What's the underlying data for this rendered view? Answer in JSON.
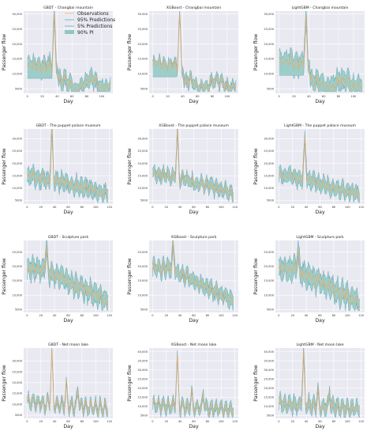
{
  "colors": {
    "panel_bg": "#e9e9f1",
    "grid": "#ffffff",
    "observations": "#f2a65a",
    "pi_fill": "#8fc8c1",
    "pi_edge": "#6aa9b5"
  },
  "legend": {
    "observations": "Observations",
    "p95": "95% Predictions",
    "p5": "5% Predictions",
    "pi": "90% PI"
  },
  "chart_data": [
    {
      "type": "area",
      "title": "GBDT - Changbai mountain",
      "xlabel": "Day",
      "ylabel": "Passenger flow",
      "xlim": [
        -5,
        115
      ],
      "ylim": [
        3500,
        31000
      ],
      "xticks": [
        0,
        20,
        40,
        60,
        80,
        100
      ],
      "yticks": [
        5000,
        10000,
        15000,
        20000,
        25000,
        30000
      ],
      "ytick_labels": [
        "5000",
        "10,000",
        "15,000",
        "20,000",
        "25,000",
        "30,000"
      ],
      "grid": true,
      "legend": "top-right",
      "shape": "A",
      "base": 13000,
      "peak": 29500,
      "peak_day": 36,
      "late_level": 6500,
      "spread": 3500
    },
    {
      "type": "area",
      "title": "XGBoost - Changbai mountain",
      "xlabel": "Day",
      "ylabel": "Passenger flow",
      "xlim": [
        -5,
        115
      ],
      "ylim": [
        3500,
        31000
      ],
      "xticks": [
        0,
        20,
        40,
        60,
        80,
        100
      ],
      "yticks": [
        5000,
        10000,
        15000,
        20000,
        25000,
        30000
      ],
      "ytick_labels": [
        "5000",
        "10,000",
        "15,000",
        "20,000",
        "25,000",
        "30,000"
      ],
      "grid": true,
      "legend": "none",
      "shape": "A",
      "base": 13500,
      "peak": 29500,
      "peak_day": 36,
      "late_level": 6500,
      "spread": 2500
    },
    {
      "type": "area",
      "title": "LightGBM - Changbai mountain",
      "xlabel": "Day",
      "ylabel": "Passenger flow",
      "xlim": [
        -5,
        115
      ],
      "ylim": [
        3500,
        31000
      ],
      "xticks": [
        0,
        20,
        40,
        60,
        80,
        100
      ],
      "yticks": [
        5000,
        10000,
        15000,
        20000,
        25000,
        30000
      ],
      "ytick_labels": [
        "5000",
        "10,000",
        "15,000",
        "20,000",
        "25,000",
        "30,000"
      ],
      "grid": true,
      "legend": "none",
      "shape": "A",
      "base": 14000,
      "peak": 29000,
      "peak_day": 36,
      "late_level": 6500,
      "spread": 4500
    },
    {
      "type": "area",
      "title": "GBDT - The puppet palace museum",
      "xlabel": "Day",
      "ylabel": "Passenger flow",
      "xlim": [
        -5,
        125
      ],
      "ylim": [
        3500,
        34000
      ],
      "xticks": [
        0,
        20,
        40,
        60,
        80,
        100,
        120
      ],
      "yticks": [
        5000,
        10000,
        15000,
        20000,
        25000,
        30000
      ],
      "ytick_labels": [
        "5000",
        "10,000",
        "15,000",
        "20,000",
        "25,000",
        "30,000"
      ],
      "grid": true,
      "legend": "none",
      "shape": "B",
      "base": 15000,
      "peak": 32500,
      "peak_day": 36,
      "late_level": 7500,
      "spread": 4500
    },
    {
      "type": "area",
      "title": "XGBoost - The puppet palace museum",
      "xlabel": "Day",
      "ylabel": "Passenger flow",
      "xlim": [
        -5,
        125
      ],
      "ylim": [
        3500,
        34000
      ],
      "xticks": [
        0,
        20,
        40,
        60,
        80,
        100,
        120
      ],
      "yticks": [
        5000,
        10000,
        15000,
        20000,
        25000,
        30000
      ],
      "ytick_labels": [
        "5000",
        "10,000",
        "15,000",
        "20,000",
        "25,000",
        "30,000"
      ],
      "grid": true,
      "legend": "none",
      "shape": "B",
      "base": 16000,
      "peak": 32000,
      "peak_day": 36,
      "late_level": 8000,
      "spread": 3500
    },
    {
      "type": "area",
      "title": "LightGBM - The puppet palace museum",
      "xlabel": "Day",
      "ylabel": "Passenger flow",
      "xlim": [
        -5,
        125
      ],
      "ylim": [
        3500,
        34000
      ],
      "xticks": [
        0,
        20,
        40,
        60,
        80,
        100,
        120
      ],
      "yticks": [
        5000,
        10000,
        15000,
        20000,
        25000,
        30000
      ],
      "ytick_labels": [
        "5000",
        "10,000",
        "15,000",
        "20,000",
        "25,000",
        "30,000"
      ],
      "grid": true,
      "legend": "none",
      "shape": "B",
      "base": 15500,
      "peak": 31500,
      "peak_day": 38,
      "late_level": 7000,
      "spread": 4000
    },
    {
      "type": "area",
      "title": "GBDT - Sculpture park",
      "xlabel": "Day",
      "ylabel": "Passenger flow",
      "xlim": [
        -5,
        125
      ],
      "ylim": [
        4000,
        29000
      ],
      "xticks": [
        0,
        20,
        40,
        60,
        80,
        100,
        120
      ],
      "yticks": [
        5000,
        10000,
        15000,
        20000,
        25000
      ],
      "ytick_labels": [
        "5000",
        "10,000",
        "15,000",
        "20,000",
        "25,000"
      ],
      "grid": true,
      "legend": "none",
      "shape": "C",
      "base": 19000,
      "peak": 26500,
      "peak_day": 28,
      "late_level": 8000,
      "spread": 4500
    },
    {
      "type": "area",
      "title": "XGBoost - Sculpture park",
      "xlabel": "Day",
      "ylabel": "Passenger flow",
      "xlim": [
        -5,
        125
      ],
      "ylim": [
        4000,
        29000
      ],
      "xticks": [
        0,
        20,
        40,
        60,
        80,
        100,
        120
      ],
      "yticks": [
        5000,
        10000,
        15000,
        20000,
        25000
      ],
      "ytick_labels": [
        "5000",
        "10,000",
        "15,000",
        "20,000",
        "25,000"
      ],
      "grid": true,
      "legend": "none",
      "shape": "C",
      "base": 19500,
      "peak": 27000,
      "peak_day": 30,
      "late_level": 8000,
      "spread": 3500
    },
    {
      "type": "area",
      "title": "LightGBM - Sculpture park",
      "xlabel": "Day",
      "ylabel": "Passenger flow",
      "xlim": [
        -5,
        125
      ],
      "ylim": [
        4000,
        29000
      ],
      "xticks": [
        0,
        20,
        40,
        60,
        80,
        100,
        120
      ],
      "yticks": [
        5000,
        10000,
        15000,
        20000,
        25000
      ],
      "ytick_labels": [
        "5000",
        "10,000",
        "15,000",
        "20,000",
        "25,000"
      ],
      "grid": true,
      "legend": "none",
      "shape": "C",
      "base": 19000,
      "peak": 25500,
      "peak_day": 28,
      "late_level": 7500,
      "spread": 5000
    },
    {
      "type": "area",
      "title": "GBDT - Net moon lake",
      "xlabel": "Day",
      "ylabel": "Passenger flow",
      "xlim": [
        -5,
        125
      ],
      "ylim": [
        3500,
        36000
      ],
      "xticks": [
        0,
        20,
        40,
        60,
        80,
        100,
        120
      ],
      "yticks": [
        5000,
        10000,
        15000,
        20000,
        25000,
        30000
      ],
      "ytick_labels": [
        "5000",
        "10,000",
        "15,000",
        "20,000",
        "25,000",
        "30,000"
      ],
      "grid": true,
      "legend": "none",
      "shape": "D",
      "base": 11000,
      "peak": 33000,
      "peak_day": 36,
      "late_level": 7000,
      "spread": 3000
    },
    {
      "type": "area",
      "title": "XGBoost - Net moon lake",
      "xlabel": "Day",
      "ylabel": "Passenger flow",
      "xlim": [
        -5,
        125
      ],
      "ylim": [
        3500,
        42000
      ],
      "xticks": [
        0,
        20,
        40,
        60,
        80,
        100,
        120
      ],
      "yticks": [
        5000,
        10000,
        15000,
        20000,
        25000,
        30000,
        35000,
        40000
      ],
      "ytick_labels": [
        "5000",
        "10,000",
        "15,000",
        "20,000",
        "25,000",
        "30,000",
        "35,000",
        "40,000"
      ],
      "grid": true,
      "legend": "none",
      "shape": "D",
      "base": 11000,
      "peak": 36000,
      "peak_day": 36,
      "late_level": 7000,
      "spread": 4000
    },
    {
      "type": "area",
      "title": "LightGBM - Net moon lake",
      "xlabel": "Day",
      "ylabel": "Passenger flow",
      "xlim": [
        -5,
        125
      ],
      "ylim": [
        3500,
        42000
      ],
      "xticks": [
        0,
        20,
        40,
        60,
        80,
        100,
        120
      ],
      "yticks": [
        5000,
        10000,
        15000,
        20000,
        25000,
        30000,
        35000,
        40000
      ],
      "ytick_labels": [
        "5000",
        "10,000",
        "15,000",
        "20,000",
        "25,000",
        "30,000",
        "35,000",
        "40,000"
      ],
      "grid": true,
      "legend": "none",
      "shape": "D",
      "base": 11500,
      "peak": 38500,
      "peak_day": 36,
      "late_level": 7500,
      "spread": 5000
    }
  ]
}
